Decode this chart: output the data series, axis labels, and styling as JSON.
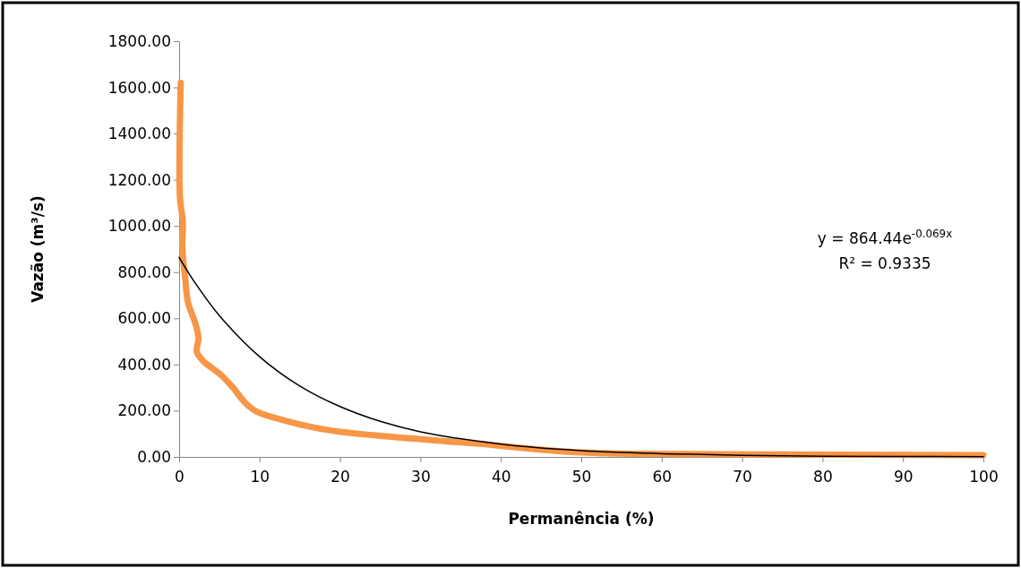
{
  "chart_data": {
    "type": "line",
    "xlabel": "Permanência (%)",
    "ylabel": "Vazão (m³/s)",
    "xlim": [
      0,
      100
    ],
    "xticks": [
      0,
      10,
      20,
      30,
      40,
      50,
      60,
      70,
      80,
      90,
      100
    ],
    "ylim": [
      0,
      1800
    ],
    "yticks": [
      {
        "value": 0,
        "label": "0.00"
      },
      {
        "value": 200,
        "label": "200.00"
      },
      {
        "value": 400,
        "label": "400.00"
      },
      {
        "value": 600,
        "label": "600.00"
      },
      {
        "value": 800,
        "label": "800.00"
      },
      {
        "value": 1000,
        "label": "1000.00"
      },
      {
        "value": 1200,
        "label": "1200.00"
      },
      {
        "value": 1400,
        "label": "1400.00"
      },
      {
        "value": 1600,
        "label": "1600.00"
      },
      {
        "value": 1800,
        "label": "1800.00"
      }
    ],
    "grid": false,
    "marker": "none",
    "series": [
      {
        "color": "#f79646",
        "x": [
          0.2,
          0.1,
          0.45,
          0.4,
          0.75,
          1.1,
          2.0,
          2.4,
          2.2,
          3.0,
          5.2,
          6.7,
          8.2,
          9.7,
          13.4,
          18.6,
          26.4,
          37.2,
          50.1,
          67,
          100
        ],
        "values": [
          1620,
          1125,
          1020,
          905,
          775,
          670,
          580,
          515,
          455,
          415,
          355,
          300,
          235,
          195,
          155,
          116,
          87,
          57,
          19,
          12,
          8
        ]
      },
      {
        "type": "line",
        "color": "#000000",
        "x": [
          0,
          2,
          5,
          10,
          15,
          20,
          25,
          30,
          40,
          50,
          60,
          70,
          80,
          90,
          100
        ],
        "values": [
          864,
          753,
          612,
          434,
          307,
          218,
          154,
          109,
          55,
          27,
          14,
          7,
          3,
          2,
          1
        ]
      }
    ],
    "annotations": [
      "y = 864.44e$^{-0.069x}$",
      "R² = 0.9335"
    ]
  }
}
